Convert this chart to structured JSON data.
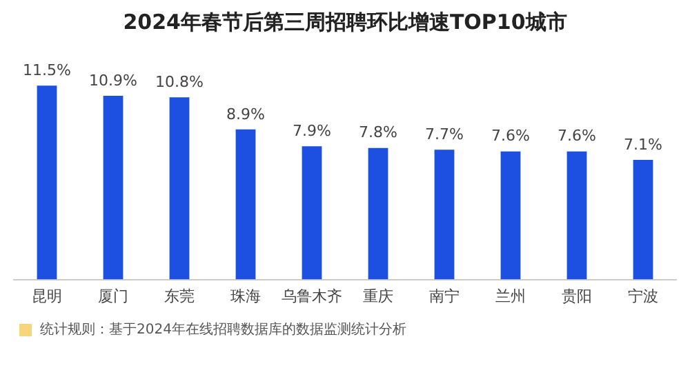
{
  "chart_data": {
    "type": "bar",
    "title": "2024年春节后第三周招聘环比增速TOP10城市",
    "categories": [
      "昆明",
      "厦门",
      "东莞",
      "珠海",
      "乌鲁木齐",
      "重庆",
      "南宁",
      "兰州",
      "贵阳",
      "宁波"
    ],
    "values": [
      11.5,
      10.9,
      10.8,
      8.9,
      7.9,
      7.8,
      7.7,
      7.6,
      7.6,
      7.1
    ],
    "value_labels": [
      "11.5%",
      "10.9%",
      "10.8%",
      "8.9%",
      "7.9%",
      "7.8%",
      "7.7%",
      "7.6%",
      "7.6%",
      "7.1%"
    ],
    "color": "#1d4fe0",
    "grid": false,
    "legend": false,
    "annotations": [
      "统计规则：基于2024年在线招聘数据库的数据监测统计分析"
    ]
  }
}
